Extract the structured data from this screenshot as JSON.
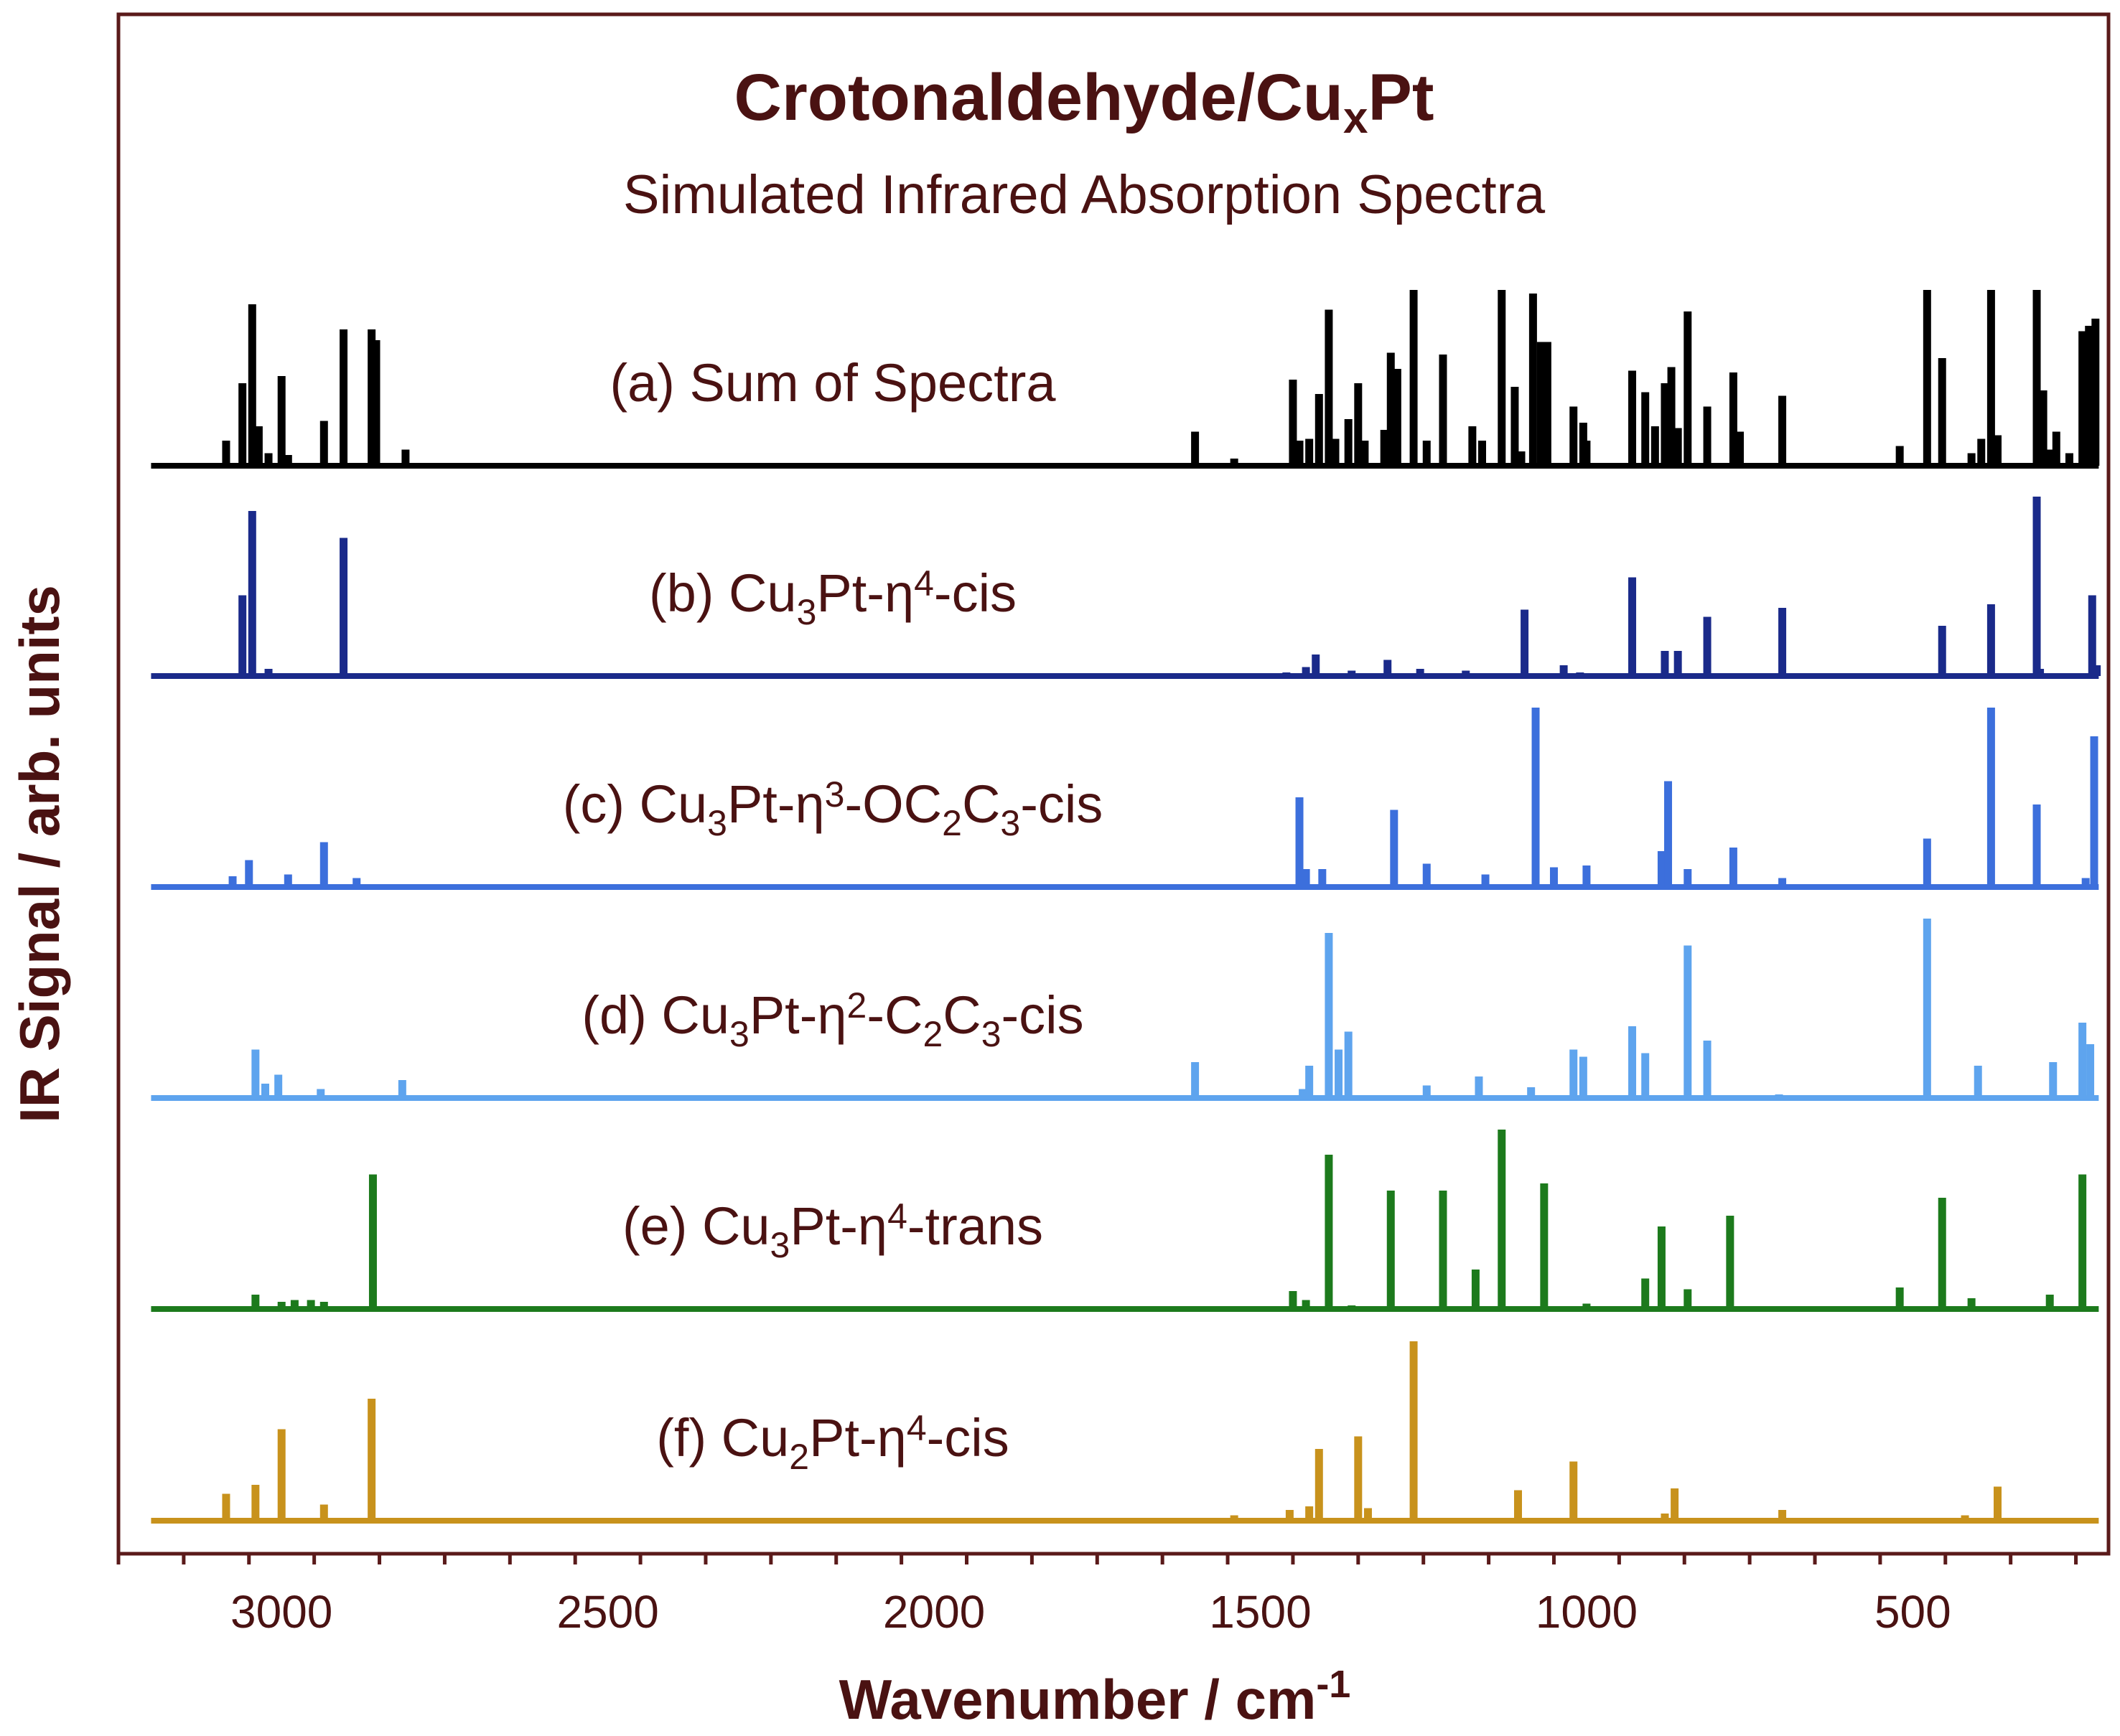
{
  "chart_data": {
    "type": "line",
    "title": "Crotonaldehyde/Cu",
    "title_subscript": "x",
    "title_suffix": "Pt",
    "subtitle": "Simulated Infrared Absorption Spectra",
    "xlabel": "Wavenumber / cm",
    "xlabel_superscript": "-1",
    "ylabel": "IR Signal / arb. units",
    "xlim": [
      3250,
      200
    ],
    "x_reversed": true,
    "xticks": [
      3000,
      2500,
      2000,
      1500,
      1000,
      500
    ],
    "xtick_labels": [
      "3000",
      "2500",
      "2000",
      "1500",
      "1000",
      "500"
    ],
    "series": [
      {
        "name": "(a) Sum of Spectra",
        "label_parts": [
          [
            "(a) Sum of Spectra",
            ""
          ]
        ],
        "color": "#000000",
        "peaks": [
          [
            3085,
            0.14
          ],
          [
            3060,
            0.46
          ],
          [
            3045,
            0.9
          ],
          [
            3035,
            0.22
          ],
          [
            3020,
            0.07
          ],
          [
            3000,
            0.5
          ],
          [
            2990,
            0.06
          ],
          [
            2935,
            0.25
          ],
          [
            2905,
            0.76
          ],
          [
            2862,
            0.76
          ],
          [
            2855,
            0.7
          ],
          [
            2810,
            0.09
          ],
          [
            1600,
            0.19
          ],
          [
            1540,
            0.04
          ],
          [
            1450,
            0.48
          ],
          [
            1440,
            0.14
          ],
          [
            1425,
            0.15
          ],
          [
            1410,
            0.4
          ],
          [
            1395,
            0.87
          ],
          [
            1385,
            0.15
          ],
          [
            1365,
            0.26
          ],
          [
            1350,
            0.46
          ],
          [
            1340,
            0.14
          ],
          [
            1310,
            0.2
          ],
          [
            1300,
            0.63
          ],
          [
            1290,
            0.54
          ],
          [
            1265,
            0.98
          ],
          [
            1245,
            0.14
          ],
          [
            1220,
            0.62
          ],
          [
            1175,
            0.22
          ],
          [
            1160,
            0.14
          ],
          [
            1130,
            0.98
          ],
          [
            1110,
            0.44
          ],
          [
            1100,
            0.08
          ],
          [
            1082,
            0.96
          ],
          [
            1070,
            0.69
          ],
          [
            1060,
            0.69
          ],
          [
            1020,
            0.33
          ],
          [
            1005,
            0.24
          ],
          [
            1000,
            0.14
          ],
          [
            930,
            0.53
          ],
          [
            910,
            0.41
          ],
          [
            895,
            0.22
          ],
          [
            880,
            0.46
          ],
          [
            870,
            0.55
          ],
          [
            860,
            0.21
          ],
          [
            845,
            0.86
          ],
          [
            815,
            0.33
          ],
          [
            775,
            0.52
          ],
          [
            765,
            0.19
          ],
          [
            700,
            0.39
          ],
          [
            520,
            0.11
          ],
          [
            478,
            0.98
          ],
          [
            455,
            0.6
          ],
          [
            410,
            0.07
          ],
          [
            395,
            0.15
          ],
          [
            380,
            0.98
          ],
          [
            370,
            0.17
          ],
          [
            310,
            0.98
          ],
          [
            300,
            0.42
          ],
          [
            290,
            0.09
          ],
          [
            280,
            0.19
          ],
          [
            260,
            0.07
          ],
          [
            240,
            0.75
          ],
          [
            230,
            0.78
          ],
          [
            220,
            0.82
          ]
        ]
      },
      {
        "name": "(b) Cu3Pt-η4-cis",
        "label_parts": [
          [
            "(b) Cu",
            ""
          ],
          [
            "3",
            "sub"
          ],
          [
            "Pt-η",
            ""
          ],
          [
            "4",
            "sup"
          ],
          [
            "-cis",
            ""
          ]
        ],
        "color": "#1a2a8a",
        "peaks": [
          [
            3060,
            0.45
          ],
          [
            3045,
            0.92
          ],
          [
            3020,
            0.04
          ],
          [
            2905,
            0.77
          ],
          [
            1460,
            0.02
          ],
          [
            1430,
            0.05
          ],
          [
            1415,
            0.12
          ],
          [
            1360,
            0.03
          ],
          [
            1305,
            0.09
          ],
          [
            1255,
            0.04
          ],
          [
            1185,
            0.03
          ],
          [
            1095,
            0.37
          ],
          [
            1035,
            0.06
          ],
          [
            1010,
            0.02
          ],
          [
            930,
            0.55
          ],
          [
            880,
            0.14
          ],
          [
            860,
            0.14
          ],
          [
            815,
            0.33
          ],
          [
            700,
            0.38
          ],
          [
            455,
            0.28
          ],
          [
            380,
            0.4
          ],
          [
            310,
            1.0
          ],
          [
            305,
            0.04
          ],
          [
            225,
            0.45
          ],
          [
            218,
            0.06
          ]
        ]
      },
      {
        "name": "(c) Cu3Pt-η3-OC2C3-cis",
        "label_parts": [
          [
            "(c) Cu",
            ""
          ],
          [
            "3",
            "sub"
          ],
          [
            "Pt-η",
            ""
          ],
          [
            "3",
            "sup"
          ],
          [
            "-OC",
            ""
          ],
          [
            "2",
            "sub"
          ],
          [
            "C",
            ""
          ],
          [
            "3",
            "sub"
          ],
          [
            "-cis",
            ""
          ]
        ],
        "color": "#3c6fdc",
        "peaks": [
          [
            3075,
            0.06
          ],
          [
            3050,
            0.15
          ],
          [
            2990,
            0.07
          ],
          [
            2935,
            0.25
          ],
          [
            2885,
            0.05
          ],
          [
            1440,
            0.5
          ],
          [
            1430,
            0.1
          ],
          [
            1405,
            0.1
          ],
          [
            1295,
            0.43
          ],
          [
            1245,
            0.13
          ],
          [
            1155,
            0.07
          ],
          [
            1078,
            1.0
          ],
          [
            1050,
            0.11
          ],
          [
            1000,
            0.12
          ],
          [
            885,
            0.2
          ],
          [
            875,
            0.59
          ],
          [
            845,
            0.1
          ],
          [
            775,
            0.22
          ],
          [
            700,
            0.05
          ],
          [
            478,
            0.27
          ],
          [
            380,
            1.0
          ],
          [
            310,
            0.46
          ],
          [
            235,
            0.05
          ],
          [
            222,
            0.84
          ]
        ]
      },
      {
        "name": "(d) Cu3Pt-η2-C2C3-cis",
        "label_parts": [
          [
            "(d) Cu",
            ""
          ],
          [
            "3",
            "sub"
          ],
          [
            "Pt-η",
            ""
          ],
          [
            "2",
            "sup"
          ],
          [
            "-C",
            ""
          ],
          [
            "2",
            "sub"
          ],
          [
            "C",
            ""
          ],
          [
            "3",
            "sub"
          ],
          [
            "-cis",
            ""
          ]
        ],
        "color": "#5ea4ee",
        "peaks": [
          [
            3040,
            0.27
          ],
          [
            3025,
            0.08
          ],
          [
            3005,
            0.13
          ],
          [
            2940,
            0.05
          ],
          [
            2815,
            0.1
          ],
          [
            1600,
            0.2
          ],
          [
            1435,
            0.05
          ],
          [
            1425,
            0.18
          ],
          [
            1395,
            0.92
          ],
          [
            1380,
            0.27
          ],
          [
            1365,
            0.37
          ],
          [
            1245,
            0.07
          ],
          [
            1165,
            0.12
          ],
          [
            1085,
            0.06
          ],
          [
            1020,
            0.27
          ],
          [
            1005,
            0.23
          ],
          [
            930,
            0.4
          ],
          [
            910,
            0.25
          ],
          [
            845,
            0.85
          ],
          [
            815,
            0.32
          ],
          [
            705,
            0.02
          ],
          [
            478,
            1.0
          ],
          [
            400,
            0.18
          ],
          [
            285,
            0.2
          ],
          [
            240,
            0.42
          ],
          [
            228,
            0.3
          ]
        ]
      },
      {
        "name": "(e) Cu3Pt-η4-trans",
        "label_parts": [
          [
            "(e) Cu",
            ""
          ],
          [
            "3",
            "sub"
          ],
          [
            "Pt-η",
            ""
          ],
          [
            "4",
            "sup"
          ],
          [
            "-trans",
            ""
          ]
        ],
        "color": "#1c7a1c",
        "peaks": [
          [
            3040,
            0.08
          ],
          [
            3000,
            0.04
          ],
          [
            2980,
            0.05
          ],
          [
            2955,
            0.05
          ],
          [
            2935,
            0.04
          ],
          [
            2860,
            0.75
          ],
          [
            1450,
            0.1
          ],
          [
            1430,
            0.05
          ],
          [
            1395,
            0.86
          ],
          [
            1360,
            0.02
          ],
          [
            1300,
            0.66
          ],
          [
            1220,
            0.66
          ],
          [
            1170,
            0.22
          ],
          [
            1130,
            1.0
          ],
          [
            1065,
            0.7
          ],
          [
            1000,
            0.03
          ],
          [
            910,
            0.17
          ],
          [
            885,
            0.46
          ],
          [
            845,
            0.11
          ],
          [
            780,
            0.52
          ],
          [
            520,
            0.12
          ],
          [
            455,
            0.62
          ],
          [
            410,
            0.06
          ],
          [
            290,
            0.08
          ],
          [
            240,
            0.75
          ]
        ]
      },
      {
        "name": "(f) Cu2Pt-η4-cis",
        "label_parts": [
          [
            "(f) Cu",
            ""
          ],
          [
            "2",
            "sub"
          ],
          [
            "Pt-η",
            ""
          ],
          [
            "4",
            "sup"
          ],
          [
            "-cis",
            ""
          ]
        ],
        "color": "#c8921c",
        "peaks": [
          [
            3085,
            0.15
          ],
          [
            3040,
            0.2
          ],
          [
            3000,
            0.51
          ],
          [
            2935,
            0.09
          ],
          [
            2862,
            0.68
          ],
          [
            1540,
            0.03
          ],
          [
            1455,
            0.06
          ],
          [
            1425,
            0.08
          ],
          [
            1410,
            0.4
          ],
          [
            1350,
            0.47
          ],
          [
            1335,
            0.07
          ],
          [
            1265,
            1.0
          ],
          [
            1105,
            0.17
          ],
          [
            1020,
            0.33
          ],
          [
            880,
            0.04
          ],
          [
            865,
            0.18
          ],
          [
            700,
            0.06
          ],
          [
            420,
            0.03
          ],
          [
            370,
            0.19
          ]
        ]
      }
    ]
  }
}
